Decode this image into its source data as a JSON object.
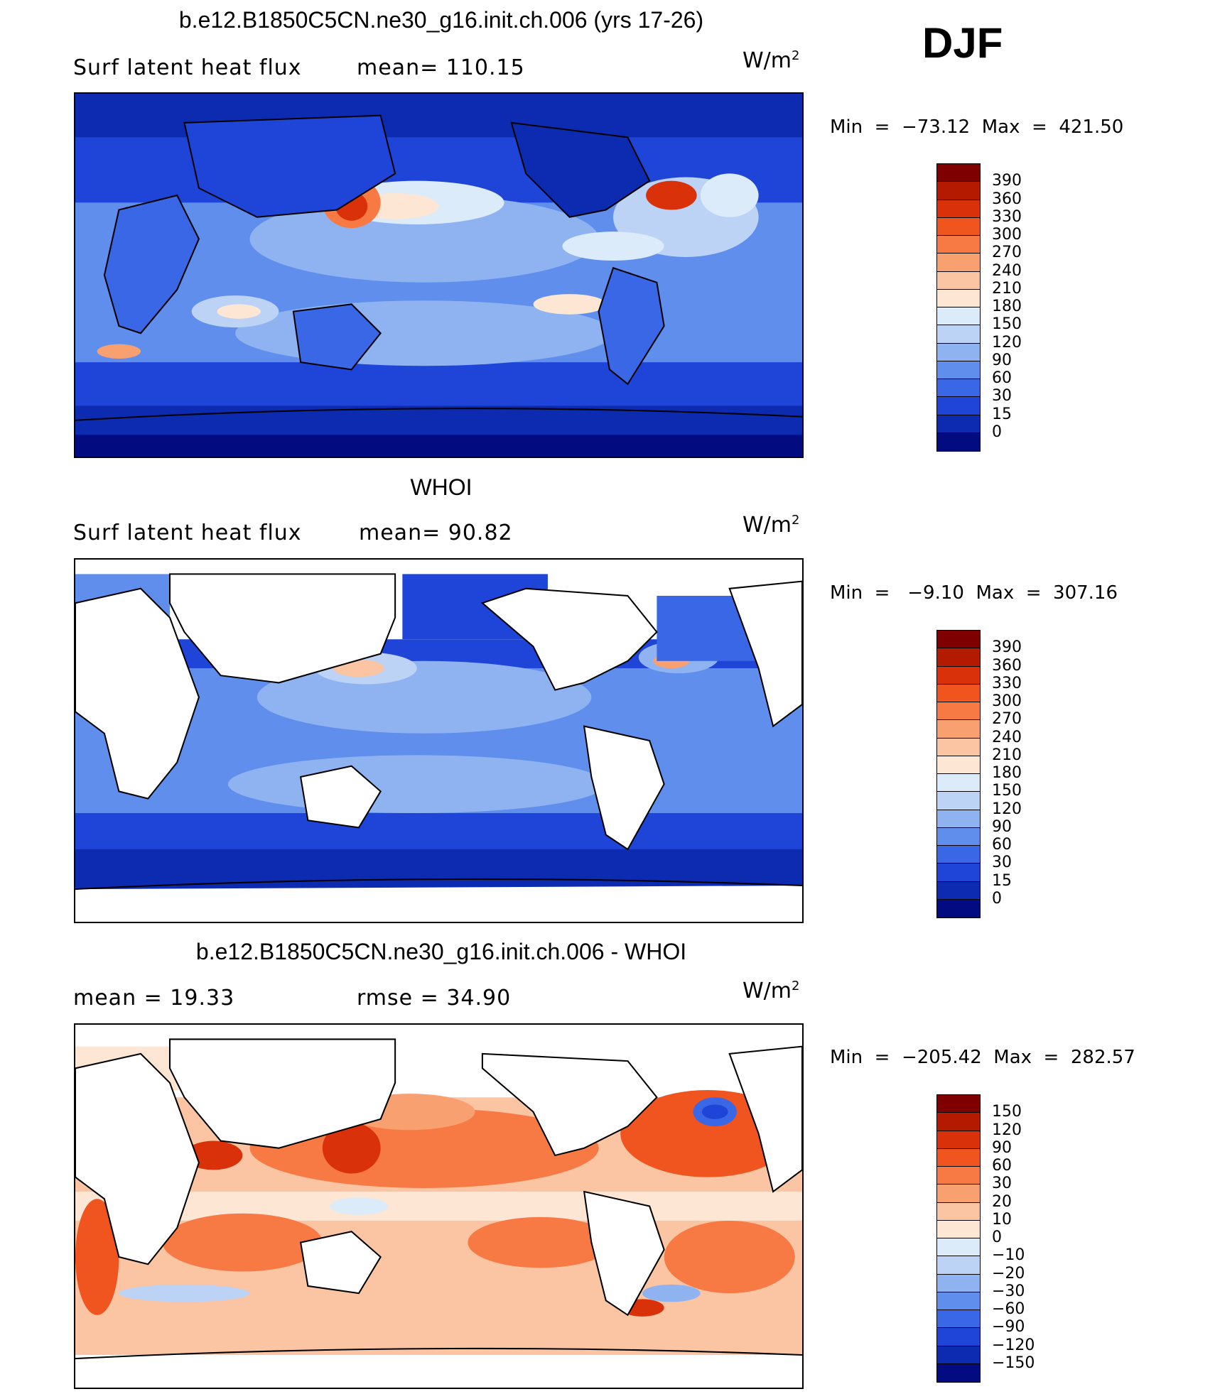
{
  "corner_label": "DJF",
  "panels": [
    {
      "title": "b.e12.B1850C5CN.ne30_g16.init.ch.006 (yrs 17-26)",
      "left_label": "Surf latent heat flux",
      "mid_label": "mean=  110.15",
      "units": "W/m",
      "units_sup": "2",
      "minmax": "Min  =  −73.12  Max  =  421.50",
      "colorbar": {
        "colors": [
          "#7f0000",
          "#b31a00",
          "#d9320a",
          "#f0541f",
          "#f77a45",
          "#f9a070",
          "#fbc4a2",
          "#fde6d4",
          "#dcebf9",
          "#bcd3f5",
          "#8fb3f0",
          "#5f8eec",
          "#3a67e6",
          "#1f45d8",
          "#0d2bb0",
          "#020c80"
        ],
        "labels": [
          "390",
          "360",
          "330",
          "300",
          "270",
          "240",
          "210",
          "180",
          "150",
          "120",
          "90",
          "60",
          "30",
          "15",
          "0"
        ]
      }
    },
    {
      "title": "WHOI",
      "left_label": "Surf latent heat flux",
      "mid_label": "mean=   90.82",
      "units": "W/m",
      "units_sup": "2",
      "minmax": "Min  =   −9.10  Max  =  307.16",
      "colorbar": {
        "colors": [
          "#7f0000",
          "#b31a00",
          "#d9320a",
          "#f0541f",
          "#f77a45",
          "#f9a070",
          "#fbc4a2",
          "#fde6d4",
          "#dcebf9",
          "#bcd3f5",
          "#8fb3f0",
          "#5f8eec",
          "#3a67e6",
          "#1f45d8",
          "#0d2bb0",
          "#020c80"
        ],
        "labels": [
          "390",
          "360",
          "330",
          "300",
          "270",
          "240",
          "210",
          "180",
          "150",
          "120",
          "90",
          "60",
          "30",
          "15",
          "0"
        ]
      }
    },
    {
      "title": "b.e12.B1850C5CN.ne30_g16.init.ch.006 - WHOI",
      "left_label": "mean  =    19.33",
      "mid_label": "rmse  =    34.90",
      "units": "W/m",
      "units_sup": "2",
      "minmax": "Min  =  −205.42  Max  =  282.57",
      "colorbar": {
        "colors": [
          "#7f0000",
          "#b31a00",
          "#d9320a",
          "#f0541f",
          "#f77a45",
          "#f9a070",
          "#fbc4a2",
          "#fde6d4",
          "#dcebf9",
          "#bcd3f5",
          "#8fb3f0",
          "#5f8eec",
          "#3a67e6",
          "#1f45d8",
          "#0d2bb0",
          "#020c80"
        ],
        "labels": [
          "150",
          "120",
          "90",
          "60",
          "30",
          "20",
          "10",
          "0",
          "−10",
          "−20",
          "−30",
          "−60",
          "−90",
          "−120",
          "−150"
        ]
      }
    }
  ]
}
